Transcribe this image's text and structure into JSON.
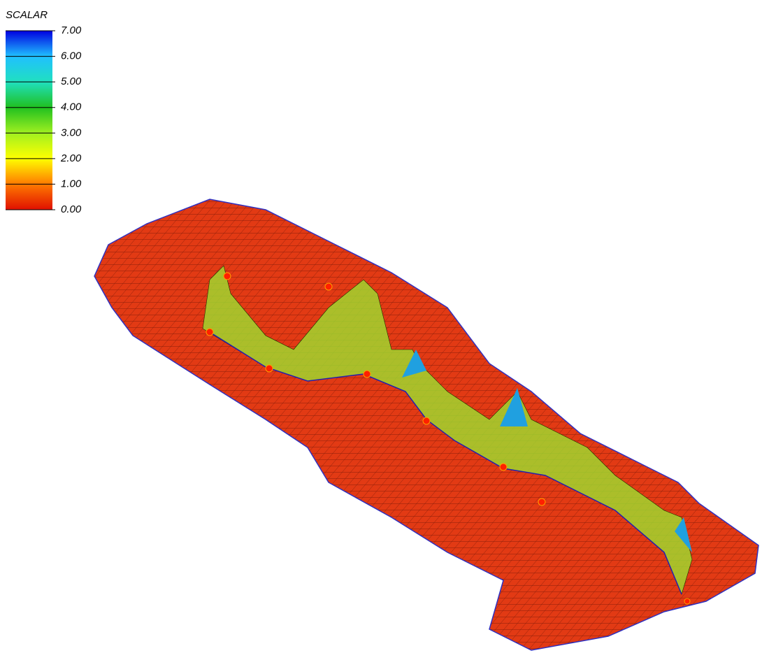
{
  "chart_data": {
    "type": "surface",
    "legend_title": "SCALAR",
    "colorbar_lim": [
      0,
      7
    ],
    "colorbar_ticks": [
      {
        "value": 7,
        "label": "7.00"
      },
      {
        "value": 6,
        "label": "6.00"
      },
      {
        "value": 5,
        "label": "5.00"
      },
      {
        "value": 4,
        "label": "4.00"
      },
      {
        "value": 3,
        "label": "3.00"
      },
      {
        "value": 2,
        "label": "2.00"
      },
      {
        "value": 1,
        "label": "1.00"
      },
      {
        "value": 0,
        "label": "0.00"
      }
    ],
    "colormap": [
      "#e01000",
      "#ff7a00",
      "#ffff00",
      "#a0f020",
      "#20c020",
      "#20e0c0",
      "#20c0ff",
      "#0000e0"
    ]
  }
}
